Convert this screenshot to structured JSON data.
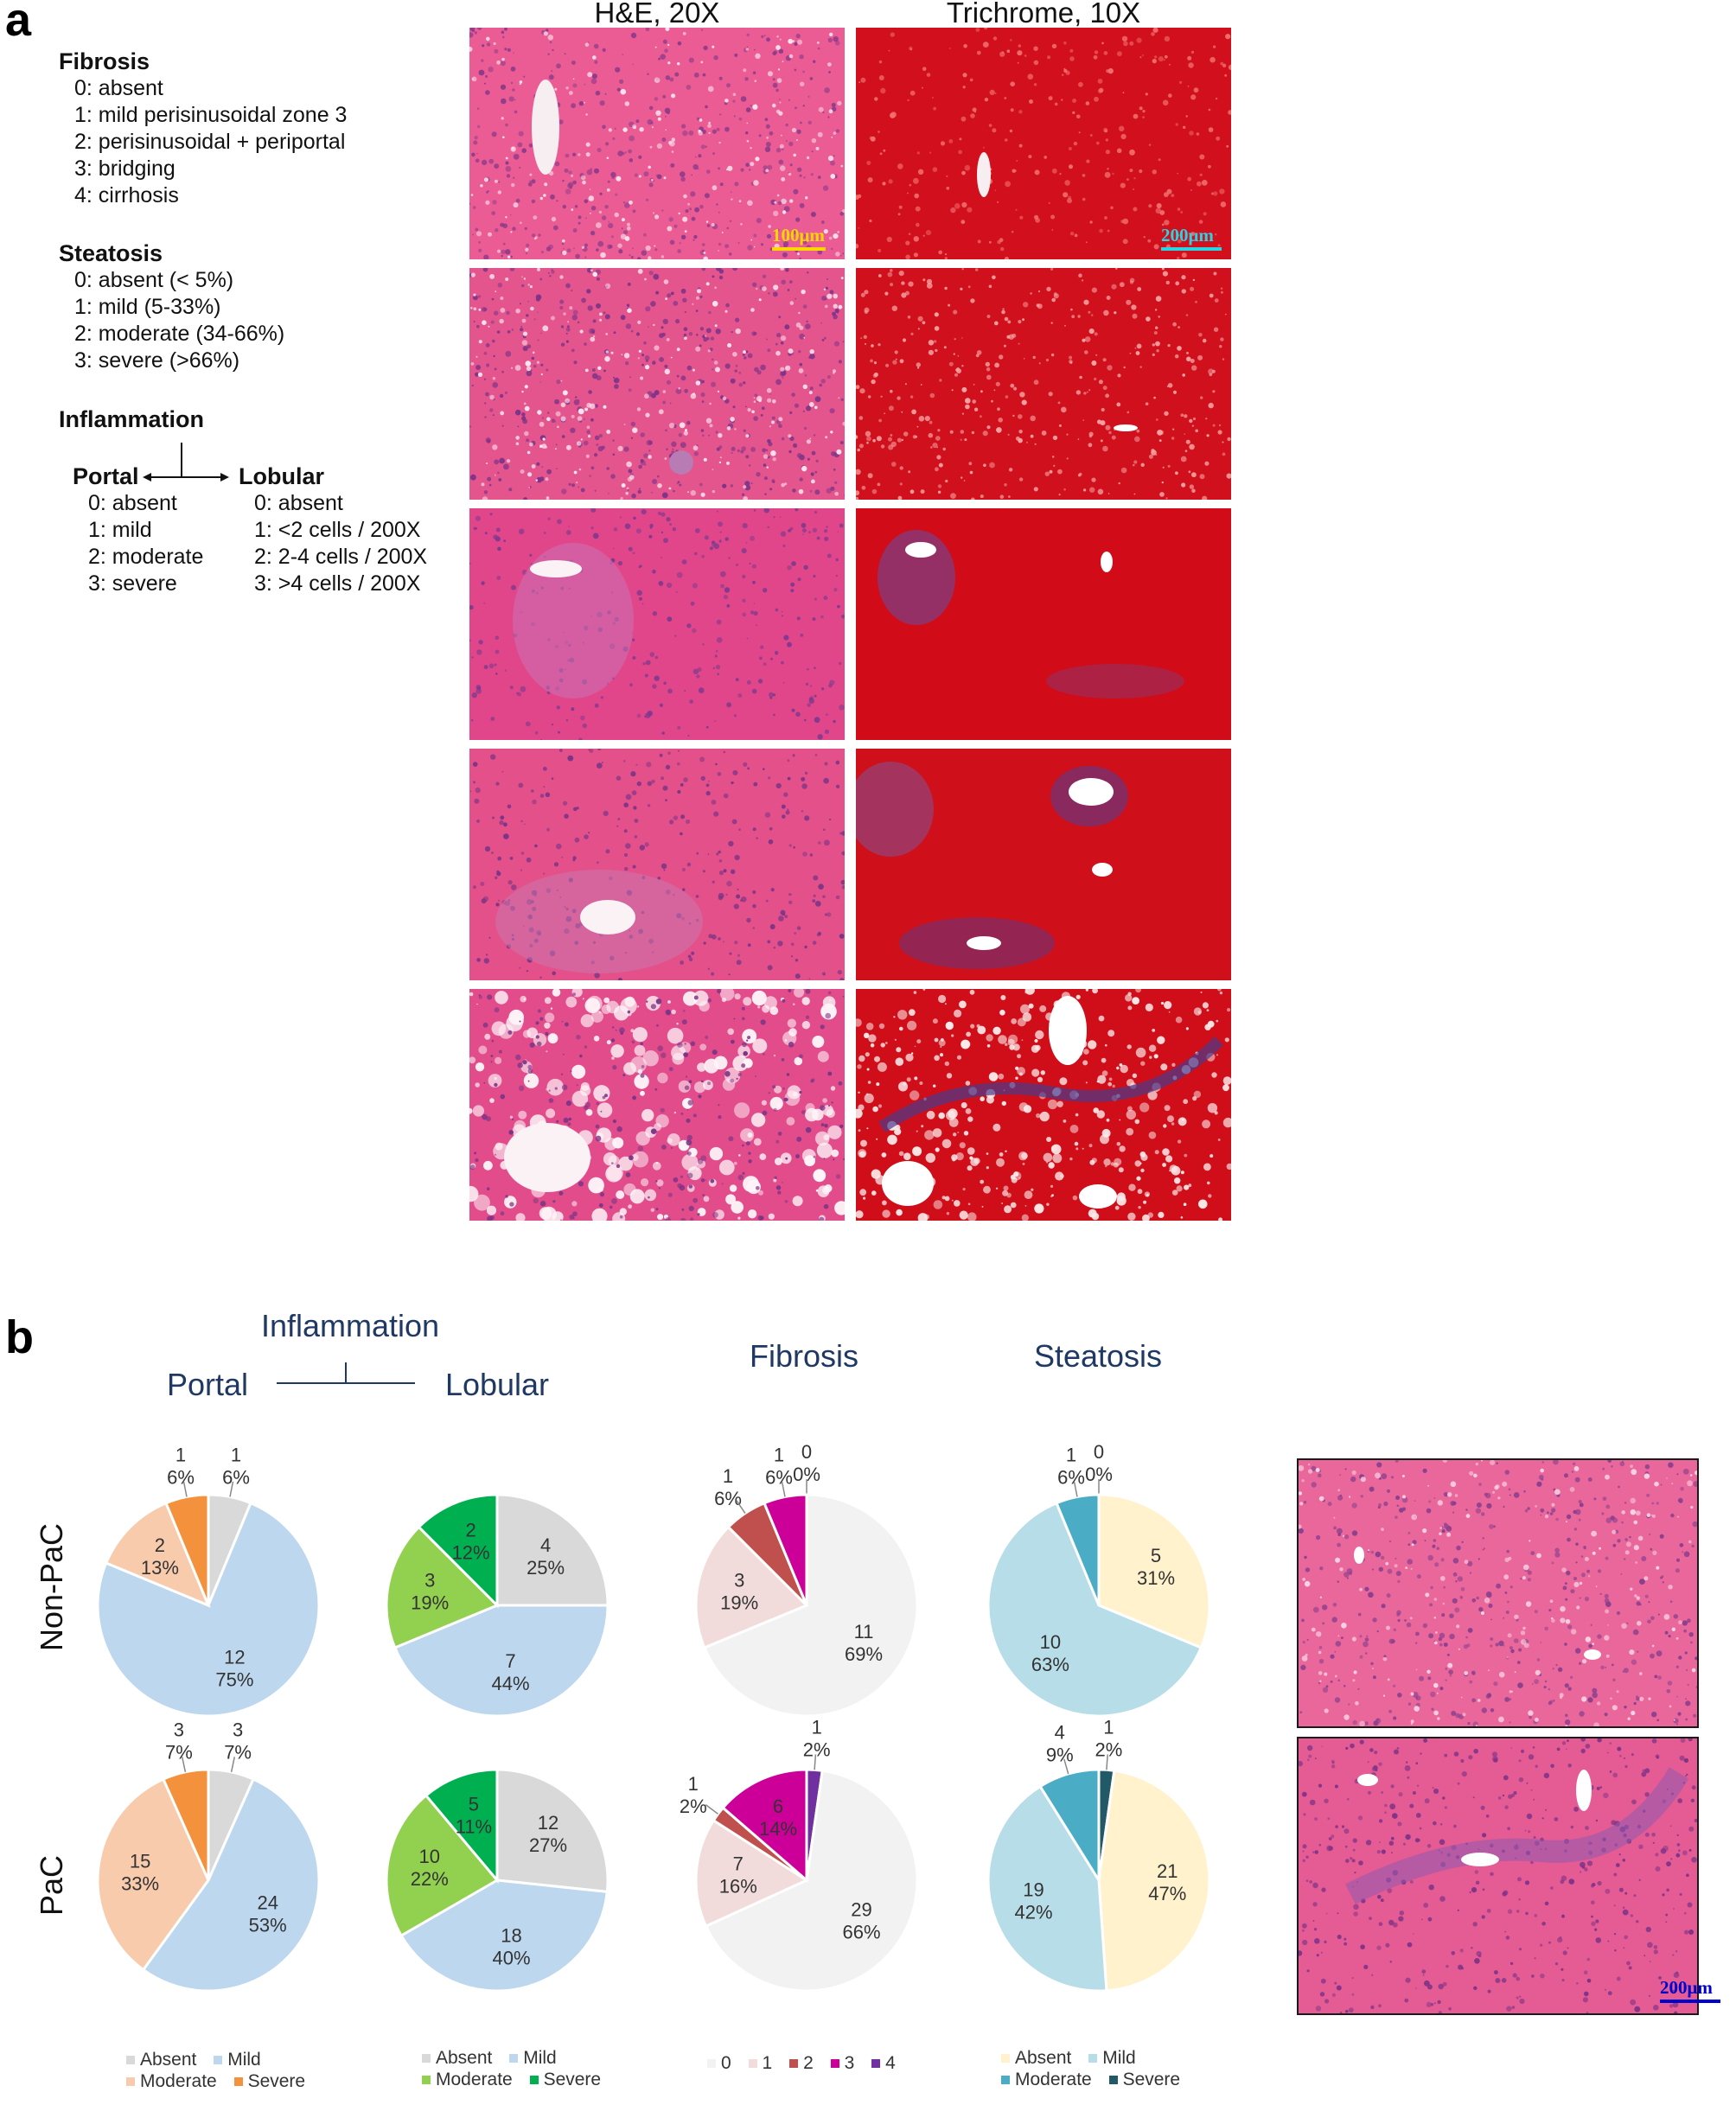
{
  "panel_a": {
    "letter": "a",
    "scoring": {
      "fibrosis": {
        "title": "Fibrosis",
        "items": [
          "0: absent",
          "1: mild perisinusoidal zone 3",
          "2: perisinusoidal + periportal",
          "3: bridging",
          "4: cirrhosis"
        ]
      },
      "steatosis": {
        "title": "Steatosis",
        "items": [
          "0: absent (< 5%)",
          "1: mild (5-33%)",
          "2: moderate (34-66%)",
          "3: severe (>66%)"
        ]
      },
      "inflammation": {
        "title": "Inflammation",
        "portal": {
          "title": "Portal",
          "items": [
            "0: absent",
            "1: mild",
            "2: moderate",
            "3: severe"
          ]
        },
        "lobular": {
          "title": "Lobular",
          "items": [
            "0:  absent",
            "1:  <2 cells / 200X",
            "2: 2-4 cells / 200X",
            "3:  >4 cells / 200X"
          ]
        }
      }
    },
    "columns": [
      "H&E, 20X",
      "Trichrome, 10X"
    ],
    "scalebars": {
      "he": "100μm",
      "trichrome": "200μm"
    }
  },
  "panel_b": {
    "letter": "b",
    "headers": {
      "inflammation": "Inflammation",
      "portal": "Portal",
      "lobular": "Lobular",
      "fibrosis": "Fibrosis",
      "steatosis": "Steatosis"
    },
    "rows": [
      "Non-PaC",
      "PaC"
    ],
    "inset_scalebar": "200μm"
  },
  "colors": {
    "inflam_absent": "#d9d9d9",
    "inflam_mild": "#bdd7ee",
    "portal_moderate": "#f8cbad",
    "portal_severe": "#f4913c",
    "lobular_moderate": "#92d050",
    "lobular_severe": "#00b050",
    "fib_0": "#f2f2f2",
    "fib_1": "#f2dcdb",
    "fib_2": "#c0504d",
    "fib_3": "#cc0099",
    "fib_4": "#7030a0",
    "steat_absent": "#fff2cc",
    "steat_mild": "#b7dde8",
    "steat_moderate": "#4bacc6",
    "steat_severe": "#215967",
    "title_blue": "#1f3864",
    "he_pink": "#e0558a",
    "trichrome_red": "#d0021b"
  },
  "chart_data": [
    {
      "type": "pie",
      "id": "nonpac-portal",
      "panel": "Portal",
      "group": "Non-PaC",
      "categories": [
        "Absent",
        "Mild",
        "Moderate",
        "Severe"
      ],
      "values": [
        1,
        12,
        2,
        1
      ],
      "labels": [
        "6%",
        "75%",
        "13%",
        "6%"
      ],
      "legend": [
        "Absent",
        "Mild",
        "Moderate",
        "Severe"
      ]
    },
    {
      "type": "pie",
      "id": "nonpac-lobular",
      "panel": "Lobular",
      "group": "Non-PaC",
      "categories": [
        "Absent",
        "Mild",
        "Moderate",
        "Severe"
      ],
      "values": [
        4,
        7,
        3,
        2
      ],
      "labels": [
        "25%",
        "44%",
        "19%",
        "12%"
      ],
      "legend": [
        "Absent",
        "Mild",
        "Moderate",
        "Severe"
      ]
    },
    {
      "type": "pie",
      "id": "nonpac-fibrosis",
      "panel": "Fibrosis",
      "group": "Non-PaC",
      "categories": [
        "0",
        "1",
        "2",
        "3",
        "4"
      ],
      "values": [
        11,
        3,
        1,
        1,
        0
      ],
      "labels": [
        "69%",
        "19%",
        "6%",
        "6%",
        "0%"
      ],
      "legend": [
        "0",
        "1",
        "2",
        "3",
        "4"
      ]
    },
    {
      "type": "pie",
      "id": "nonpac-steatosis",
      "panel": "Steatosis",
      "group": "Non-PaC",
      "categories": [
        "Absent",
        "Mild",
        "Moderate",
        "Severe"
      ],
      "values": [
        5,
        10,
        1,
        0
      ],
      "labels": [
        "31%",
        "63%",
        "6%",
        "0%"
      ],
      "legend": [
        "Absent",
        "Mild",
        "Moderate",
        "Severe"
      ]
    },
    {
      "type": "pie",
      "id": "pac-portal",
      "panel": "Portal",
      "group": "PaC",
      "categories": [
        "Absent",
        "Mild",
        "Moderate",
        "Severe"
      ],
      "values": [
        3,
        24,
        15,
        3
      ],
      "labels": [
        "7%",
        "53%",
        "33%",
        "7%"
      ],
      "legend": [
        "Absent",
        "Mild",
        "Moderate",
        "Severe"
      ]
    },
    {
      "type": "pie",
      "id": "pac-lobular",
      "panel": "Lobular",
      "group": "PaC",
      "categories": [
        "Absent",
        "Mild",
        "Moderate",
        "Severe"
      ],
      "values": [
        12,
        18,
        10,
        5
      ],
      "labels": [
        "27%",
        "40%",
        "22%",
        "11%"
      ],
      "legend": [
        "Absent",
        "Mild",
        "Moderate",
        "Severe"
      ]
    },
    {
      "type": "pie",
      "id": "pac-fibrosis",
      "panel": "Fibrosis",
      "group": "PaC",
      "categories": [
        "0",
        "1",
        "2",
        "3",
        "4"
      ],
      "values": [
        29,
        7,
        1,
        6,
        1
      ],
      "labels": [
        "66%",
        "16%",
        "2%",
        "14%",
        "2%"
      ],
      "legend": [
        "0",
        "1",
        "2",
        "3",
        "4"
      ]
    },
    {
      "type": "pie",
      "id": "pac-steatosis",
      "panel": "Steatosis",
      "group": "PaC",
      "categories": [
        "Absent",
        "Mild",
        "Moderate",
        "Severe"
      ],
      "values": [
        21,
        19,
        4,
        1
      ],
      "labels": [
        "47%",
        "42%",
        "9%",
        "2%"
      ],
      "legend": [
        "Absent",
        "Mild",
        "Moderate",
        "Severe"
      ]
    }
  ]
}
